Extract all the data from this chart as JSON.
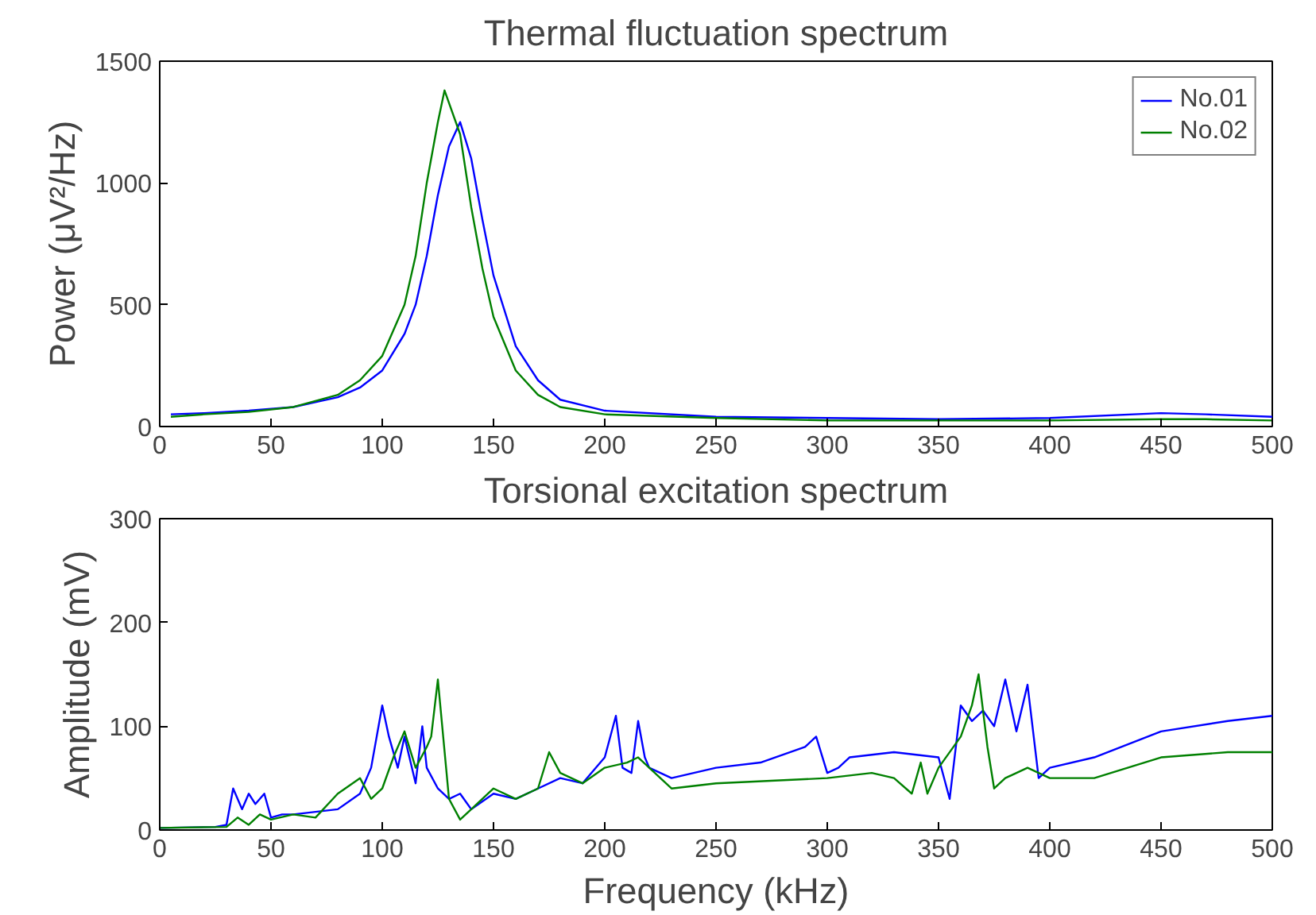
{
  "chart_data": [
    {
      "type": "line",
      "title": "Thermal fluctuation spectrum",
      "ylabel": "Power (μV²/Hz)",
      "xlim": [
        0,
        500
      ],
      "xticks": [
        0,
        50,
        100,
        150,
        200,
        250,
        300,
        350,
        400,
        450,
        500
      ],
      "ylim": [
        0,
        1500
      ],
      "yticks": [
        0,
        500,
        1000,
        1500
      ],
      "grid": false,
      "legend": "top right",
      "marker": "none",
      "line_style": "solid",
      "series": [
        {
          "name": "No.01",
          "color": "#0000ff",
          "x": [
            5,
            20,
            40,
            60,
            80,
            90,
            100,
            110,
            115,
            120,
            125,
            130,
            135,
            140,
            145,
            150,
            160,
            170,
            180,
            200,
            250,
            300,
            350,
            400,
            450,
            470,
            500
          ],
          "values": [
            50,
            55,
            65,
            80,
            120,
            160,
            230,
            380,
            500,
            700,
            950,
            1150,
            1250,
            1100,
            850,
            620,
            330,
            190,
            110,
            65,
            40,
            35,
            30,
            35,
            55,
            50,
            40
          ]
        },
        {
          "name": "No.02",
          "color": "#008000",
          "x": [
            5,
            20,
            40,
            60,
            80,
            90,
            100,
            110,
            115,
            120,
            125,
            128,
            135,
            140,
            145,
            150,
            160,
            170,
            180,
            200,
            250,
            300,
            350,
            400,
            450,
            470,
            500
          ],
          "values": [
            40,
            50,
            60,
            80,
            130,
            190,
            290,
            500,
            700,
            1000,
            1250,
            1380,
            1200,
            900,
            650,
            450,
            230,
            130,
            80,
            50,
            35,
            25,
            25,
            25,
            30,
            30,
            25
          ]
        }
      ]
    },
    {
      "type": "line",
      "title": "Torsional excitation spectrum",
      "xlabel": "Frequency (kHz)",
      "ylabel": "Amplitude (mV)",
      "xlim": [
        0,
        500
      ],
      "xticks": [
        0,
        50,
        100,
        150,
        200,
        250,
        300,
        350,
        400,
        450,
        500
      ],
      "ylim": [
        0,
        300
      ],
      "yticks": [
        0,
        100,
        200,
        300
      ],
      "grid": false,
      "legend": false,
      "marker": "none",
      "line_style": "solid",
      "series": [
        {
          "color": "#0000ff",
          "x": [
            0,
            25,
            30,
            33,
            37,
            40,
            43,
            47,
            50,
            55,
            60,
            80,
            90,
            95,
            100,
            103,
            107,
            110,
            115,
            118,
            120,
            125,
            130,
            135,
            140,
            150,
            160,
            170,
            180,
            190,
            200,
            205,
            208,
            212,
            215,
            218,
            220,
            230,
            250,
            270,
            290,
            295,
            300,
            305,
            310,
            330,
            350,
            355,
            360,
            365,
            370,
            375,
            380,
            385,
            390,
            395,
            400,
            420,
            450,
            480,
            500
          ],
          "values": [
            2,
            3,
            5,
            40,
            20,
            35,
            25,
            35,
            12,
            15,
            15,
            20,
            35,
            60,
            120,
            90,
            60,
            90,
            45,
            100,
            60,
            40,
            30,
            35,
            20,
            35,
            30,
            40,
            50,
            45,
            70,
            110,
            60,
            55,
            105,
            70,
            60,
            50,
            60,
            65,
            80,
            90,
            55,
            60,
            70,
            75,
            70,
            30,
            120,
            105,
            115,
            100,
            145,
            95,
            140,
            50,
            60,
            70,
            95,
            105,
            110
          ]
        },
        {
          "color": "#008000",
          "x": [
            0,
            30,
            35,
            40,
            45,
            50,
            60,
            70,
            80,
            90,
            95,
            100,
            105,
            110,
            115,
            120,
            122,
            125,
            130,
            135,
            140,
            150,
            160,
            170,
            175,
            180,
            190,
            200,
            210,
            215,
            220,
            230,
            250,
            300,
            320,
            330,
            338,
            342,
            345,
            350,
            360,
            365,
            368,
            372,
            375,
            380,
            390,
            400,
            420,
            450,
            480,
            500
          ],
          "values": [
            2,
            3,
            12,
            5,
            15,
            10,
            15,
            12,
            35,
            50,
            30,
            40,
            70,
            95,
            60,
            80,
            90,
            145,
            30,
            10,
            20,
            40,
            30,
            40,
            75,
            55,
            45,
            60,
            65,
            70,
            60,
            40,
            45,
            50,
            55,
            50,
            35,
            65,
            35,
            60,
            90,
            120,
            150,
            80,
            40,
            50,
            60,
            50,
            50,
            70,
            75,
            75
          ]
        }
      ]
    }
  ]
}
